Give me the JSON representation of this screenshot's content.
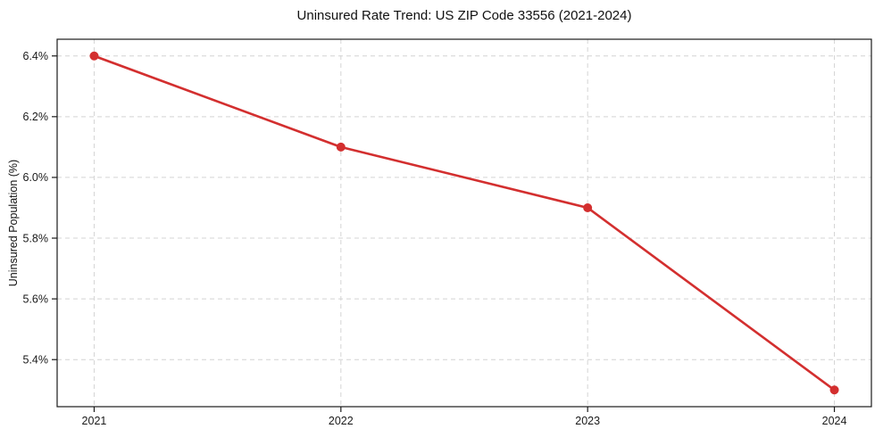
{
  "chart_data": {
    "type": "line",
    "title": "Uninsured Rate Trend: US ZIP Code 33556 (2021-2024)",
    "categories": [
      "2021",
      "2022",
      "2023",
      "2024"
    ],
    "values": [
      6.4,
      6.1,
      5.9,
      5.3
    ],
    "xlabel": "",
    "ylabel": "Uninsured Population (%)",
    "ylim": [
      5.245,
      6.455
    ],
    "yticks": [
      5.4,
      5.6,
      5.8,
      6.0,
      6.2,
      6.4
    ],
    "ytick_labels": [
      "5.4%",
      "5.6%",
      "5.8%",
      "6.0%",
      "6.2%",
      "6.4%"
    ],
    "grid": true,
    "grid_style": "dashed",
    "legend": "none",
    "line_color": "#d32f2f",
    "marker": "circle",
    "marker_color": "#d32f2f",
    "grid_color": "#d4d4d4",
    "axis_color": "#1a1a1a",
    "text_color": "#1a1a1a",
    "background": "#ffffff"
  }
}
